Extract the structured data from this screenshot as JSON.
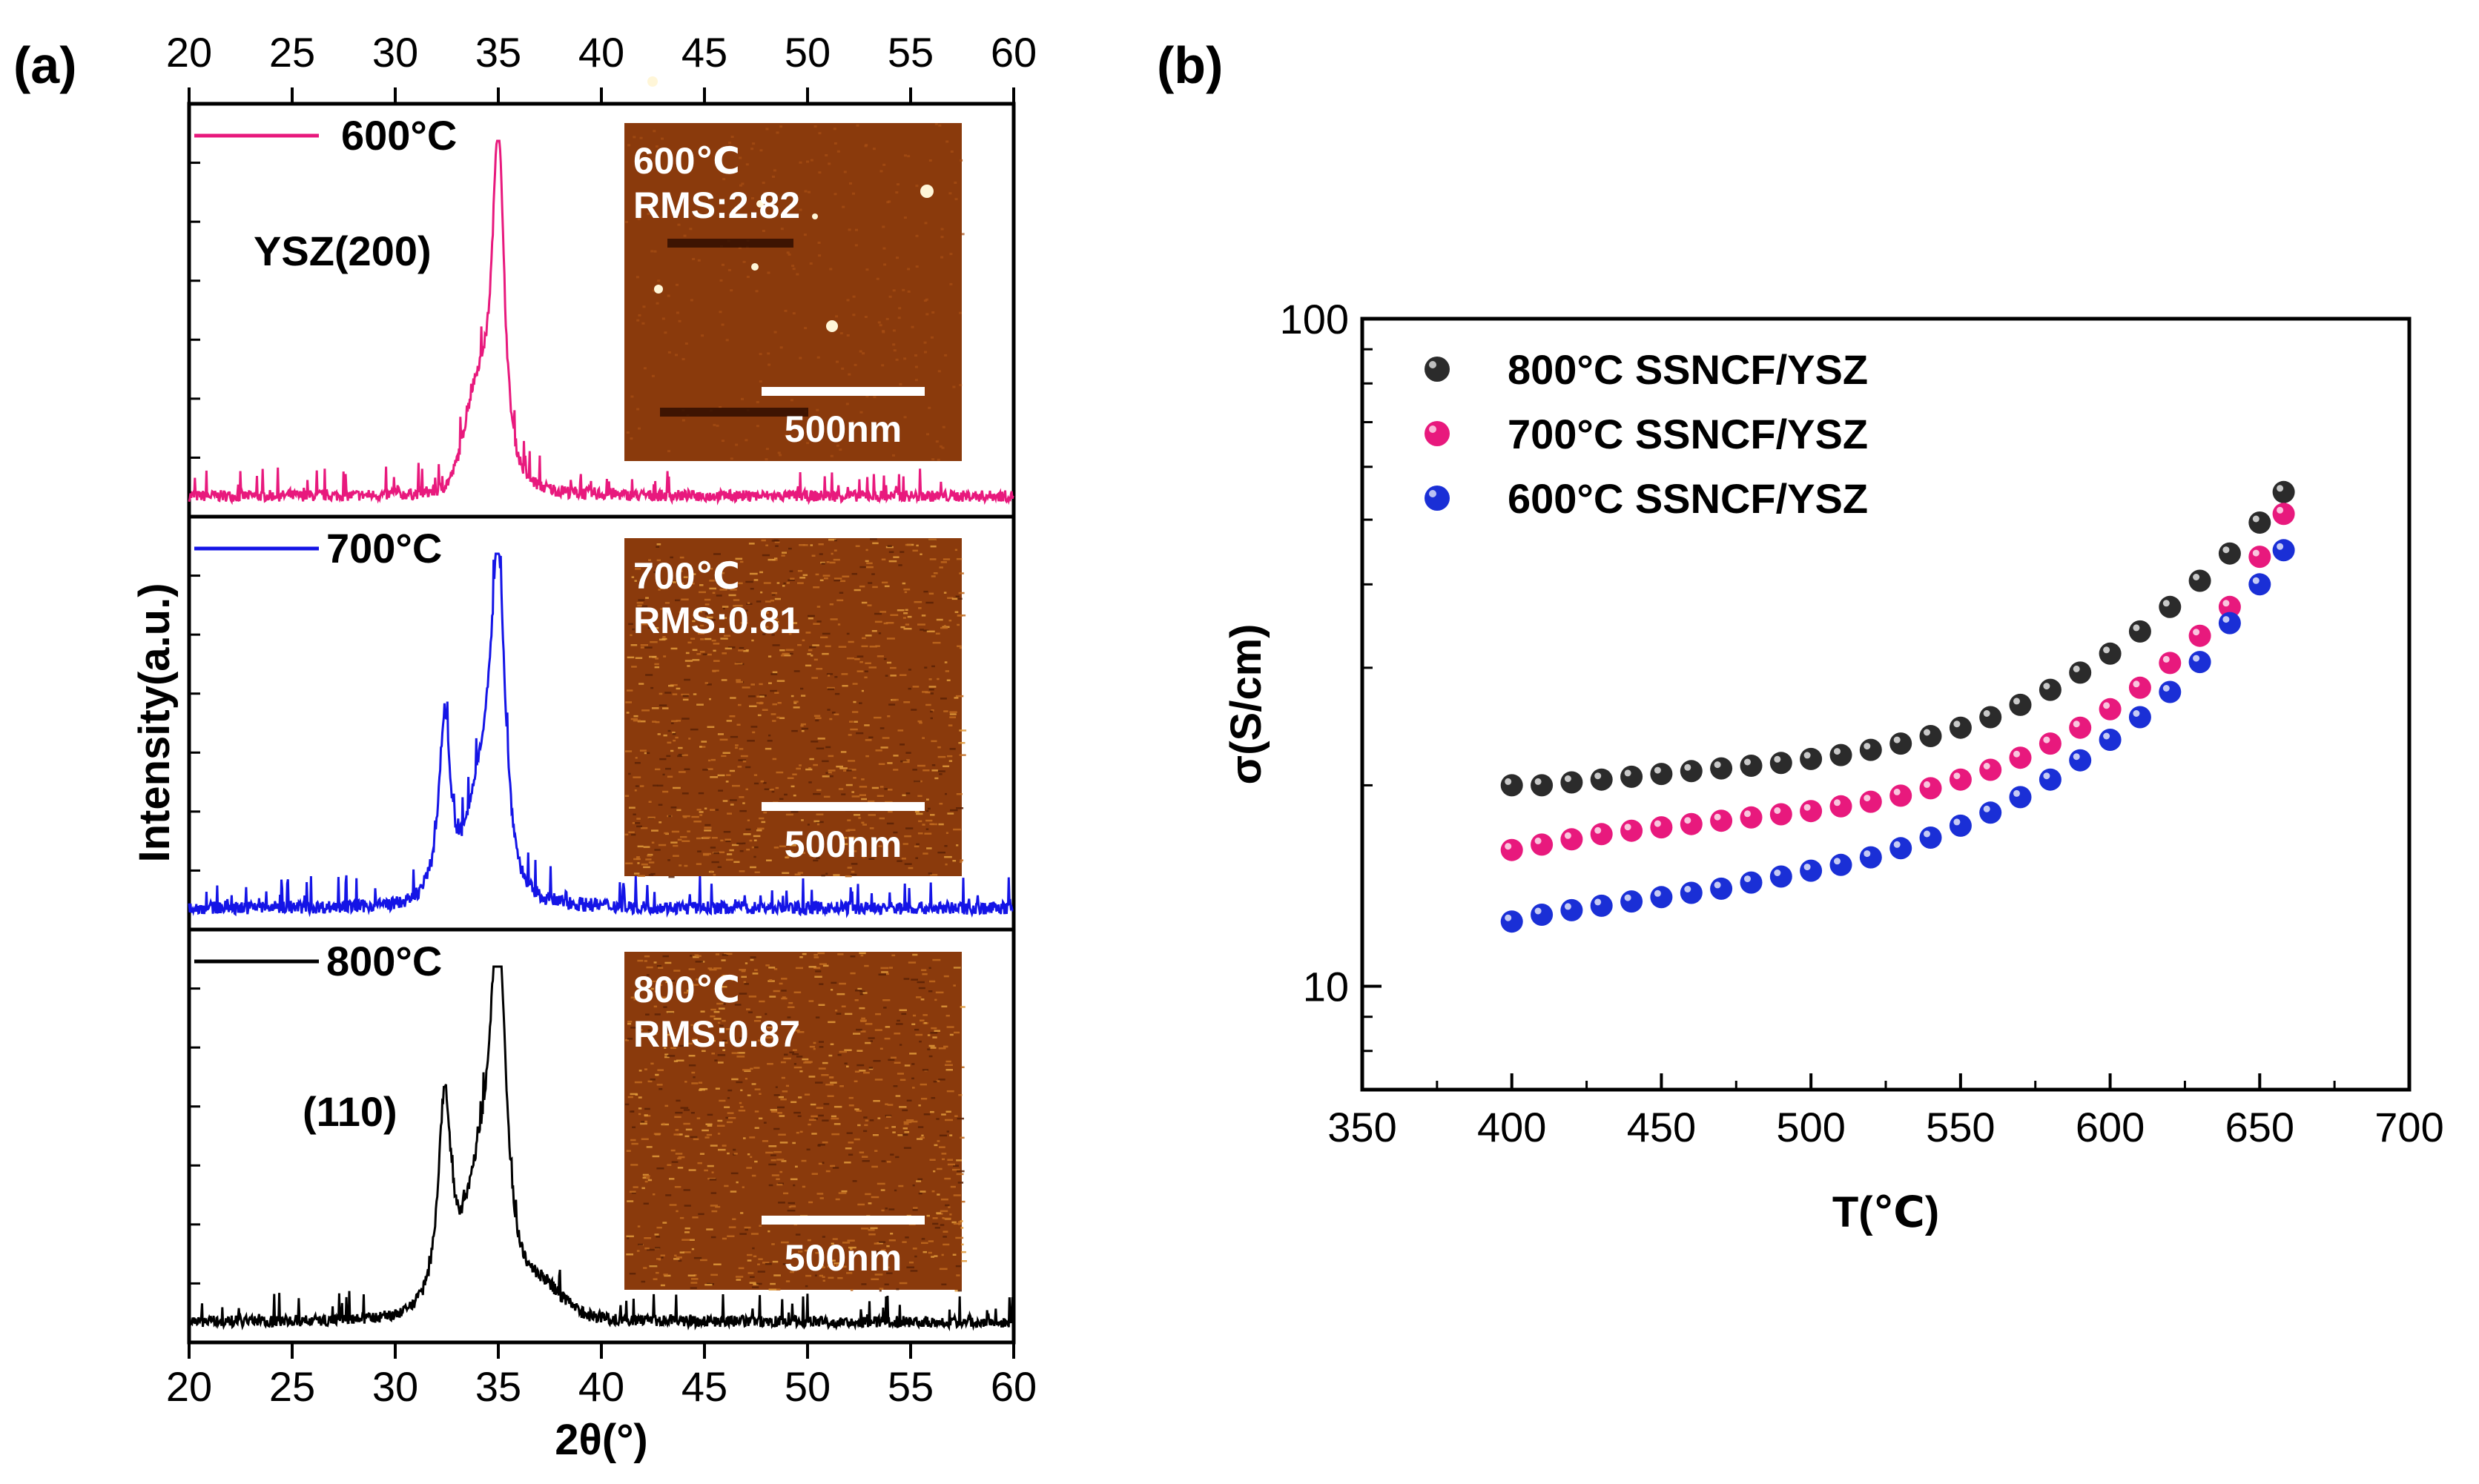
{
  "panel_labels": {
    "a": "(a)",
    "b": "(b)"
  },
  "chart_data": [
    {
      "type": "line",
      "xlabel": "2θ(°)",
      "ylabel": "Intensity(a.u.)",
      "xlim": [
        20,
        60
      ],
      "x_ticks": [
        "20",
        "25",
        "30",
        "35",
        "40",
        "45",
        "50",
        "55",
        "60"
      ],
      "top_ticks": [
        "20",
        "25",
        "30",
        "35",
        "40",
        "45",
        "50",
        "55",
        "60"
      ],
      "stacked": true,
      "series": [
        {
          "name": "600°C",
          "color": "#e8197d",
          "peaks": [
            {
              "x": 35.0,
              "h": 0.96,
              "w": 0.35
            }
          ],
          "shoulders": [
            {
              "x": 34.0,
              "h": 0.25,
              "w": 0.9
            }
          ],
          "noise": 0.035,
          "annotations": [
            "YSZ(200)"
          ],
          "inset": {
            "temperature": "600℃",
            "rms": "RMS:2.82",
            "scale": "500nm",
            "style": "smooth"
          }
        },
        {
          "name": "700°C",
          "color": "#1414e6",
          "peaks": [
            {
              "x": 35.0,
              "h": 0.82,
              "w": 0.4
            },
            {
              "x": 32.4,
              "h": 0.52,
              "w": 0.35
            }
          ],
          "shoulders": [
            {
              "x": 34.3,
              "h": 0.3,
              "w": 1.0
            }
          ],
          "noise": 0.04,
          "annotations": [],
          "inset": {
            "temperature": "700℃",
            "rms": "RMS:0.81",
            "scale": "500nm",
            "style": "grainy"
          }
        },
        {
          "name": "800°C",
          "color": "#000000",
          "peaks": [
            {
              "x": 35.0,
              "h": 0.92,
              "w": 0.45
            },
            {
              "x": 32.4,
              "h": 0.6,
              "w": 0.4
            }
          ],
          "shoulders": [
            {
              "x": 34.2,
              "h": 0.32,
              "w": 1.1
            },
            {
              "x": 37.0,
              "h": 0.08,
              "w": 1.5
            }
          ],
          "noise": 0.035,
          "annotations": [
            "(110)"
          ],
          "inset": {
            "temperature": "800℃",
            "rms": "RMS:0.87",
            "scale": "500nm",
            "style": "grainy"
          }
        }
      ]
    },
    {
      "type": "scatter",
      "xlabel": "T(℃)",
      "ylabel": "σ(S/cm)",
      "xlim": [
        350,
        700
      ],
      "ylim": [
        7,
        100
      ],
      "yscale": "log",
      "x_ticks": [
        "350",
        "400",
        "450",
        "500",
        "550",
        "600",
        "650",
        "700"
      ],
      "y_ticks": [
        "10",
        "100"
      ],
      "legend_position": "top-left",
      "x": [
        400,
        410,
        420,
        430,
        440,
        450,
        460,
        470,
        480,
        490,
        500,
        510,
        520,
        530,
        540,
        550,
        560,
        570,
        580,
        590,
        600,
        610,
        620,
        630,
        640,
        650,
        658
      ],
      "series": [
        {
          "name": "800°C SSNCF/YSZ",
          "color": "#2b2b2b",
          "values": [
            20.0,
            20.0,
            20.2,
            20.4,
            20.6,
            20.8,
            21.0,
            21.2,
            21.4,
            21.6,
            21.9,
            22.2,
            22.6,
            23.1,
            23.7,
            24.4,
            25.3,
            26.4,
            27.8,
            29.5,
            31.5,
            34.0,
            37.0,
            40.5,
            44.5,
            49.5,
            55.0
          ]
        },
        {
          "name": "700°C SSNCF/YSZ",
          "color": "#e8197d",
          "values": [
            16.0,
            16.3,
            16.6,
            16.9,
            17.1,
            17.3,
            17.5,
            17.7,
            17.9,
            18.1,
            18.3,
            18.6,
            18.9,
            19.3,
            19.8,
            20.4,
            21.1,
            22.0,
            23.1,
            24.4,
            26.0,
            28.0,
            30.5,
            33.5,
            37.0,
            44.0,
            51.0
          ]
        },
        {
          "name": "600°C SSNCF/YSZ",
          "color": "#1a2fd6",
          "values": [
            12.5,
            12.8,
            13.0,
            13.2,
            13.4,
            13.6,
            13.8,
            14.0,
            14.3,
            14.6,
            14.9,
            15.2,
            15.6,
            16.1,
            16.7,
            17.4,
            18.2,
            19.2,
            20.4,
            21.8,
            23.4,
            25.3,
            27.6,
            30.6,
            35.0,
            40.0,
            45.0
          ]
        }
      ]
    }
  ]
}
